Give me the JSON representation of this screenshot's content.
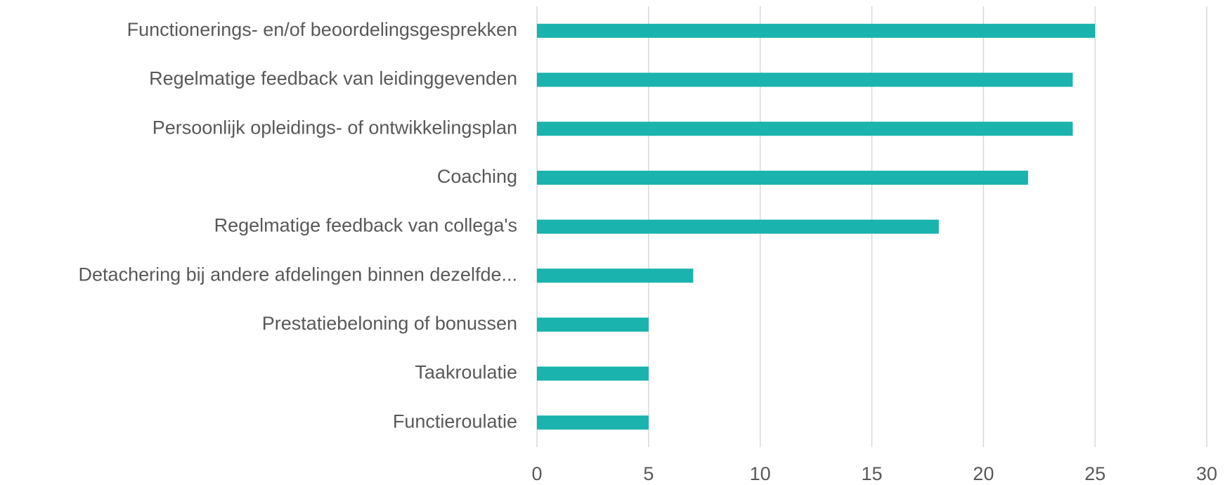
{
  "chart_data": {
    "type": "bar",
    "orientation": "horizontal",
    "categories": [
      "Functionerings- en/of beoordelingsgesprekken",
      "Regelmatige feedback van leidinggevenden",
      "Persoonlijk opleidings- of ontwikkelingsplan",
      "Coaching",
      "Regelmatige feedback van collega's",
      "Detachering bij andere afdelingen binnen dezelfde...",
      "Prestatiebeloning of bonussen",
      "Taakroulatie",
      "Functieroulatie"
    ],
    "values": [
      25,
      24,
      24,
      22,
      18,
      7,
      5,
      5,
      5
    ],
    "color": "#1ab3ad",
    "xlim": [
      0,
      30
    ],
    "xticks": [
      0,
      5,
      10,
      15,
      20,
      25,
      30
    ],
    "grid": true
  }
}
